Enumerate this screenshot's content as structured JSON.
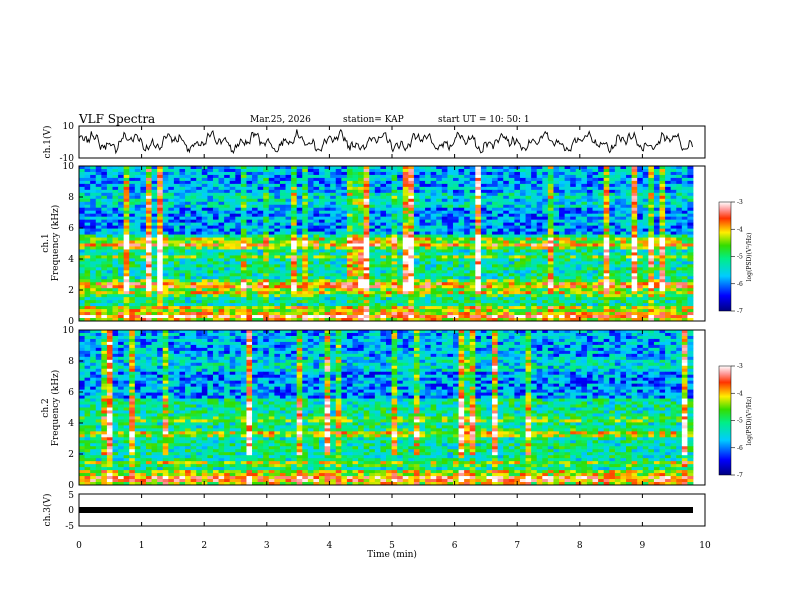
{
  "header": {
    "title": "VLF Spectra",
    "date": "Mar.25, 2026",
    "station": "station= KAP",
    "start": "start  UT  =   10: 50: 1"
  },
  "chart_data": [
    {
      "type": "line",
      "panel": "ch1-waveform",
      "ylabel": "ch.1(V)",
      "ylim": [
        -10,
        10
      ],
      "yticks": [
        "10",
        "-10"
      ],
      "xlim": [
        0,
        10
      ],
      "description_series": "oscillating voltage trace, amplitude about +/-5 V"
    },
    {
      "type": "heatmap",
      "panel": "ch1-spectrogram",
      "ylabel": "ch.1\nFrequency (kHz)",
      "ylabel_lines": [
        "ch.1",
        "Frequency (kHz)"
      ],
      "ylim": [
        0,
        10
      ],
      "yticks": [
        "0",
        "2",
        "4",
        "6",
        "8",
        "10"
      ],
      "xlim": [
        0,
        10
      ],
      "colorbar": {
        "label": "log(PSD)(V²/Hz)",
        "range": [
          -7,
          -3
        ],
        "ticks": [
          "-3",
          "-4",
          "-5",
          "-6",
          "-7"
        ]
      },
      "bands": [
        {
          "f_khz": 0.3,
          "level": -3.3
        },
        {
          "f_khz": 1.8,
          "level": -4.2
        },
        {
          "f_khz": 2.3,
          "level": -3.5
        },
        {
          "f_khz": 4.1,
          "level": -4.5
        },
        {
          "f_khz": 4.9,
          "level": -3.8
        },
        {
          "f_khz": 5.2,
          "level": -4.0
        }
      ]
    },
    {
      "type": "heatmap",
      "panel": "ch2-spectrogram",
      "ylabel": "ch.2\nFrequency (kHz)",
      "ylabel_lines": [
        "ch.2",
        "Frequency (kHz)"
      ],
      "ylim": [
        0,
        10
      ],
      "yticks": [
        "0",
        "2",
        "4",
        "6",
        "8",
        "10"
      ],
      "xlim": [
        0,
        10
      ],
      "colorbar": {
        "label": "log(PSD)(V²/Hz)",
        "range": [
          -7,
          -3
        ],
        "ticks": [
          "-3",
          "-4",
          "-5",
          "-6",
          "-7"
        ]
      },
      "bands": [
        {
          "f_khz": 0.4,
          "level": -3.3
        },
        {
          "f_khz": 1.4,
          "level": -4.3
        },
        {
          "f_khz": 3.3,
          "level": -4.0
        },
        {
          "f_khz": 4.2,
          "level": -4.4
        }
      ]
    },
    {
      "type": "line",
      "panel": "ch3-waveform",
      "ylabel": "ch.3(V)",
      "ylim": [
        -5,
        5
      ],
      "yticks": [
        "5",
        "0",
        "-5"
      ],
      "xlim": [
        0,
        10
      ],
      "xlabel": "Time (min)",
      "xticks": [
        "0",
        "1",
        "2",
        "3",
        "4",
        "5",
        "6",
        "7",
        "8",
        "9",
        "10"
      ],
      "description_series": "thick flat trace near -1 V"
    }
  ]
}
